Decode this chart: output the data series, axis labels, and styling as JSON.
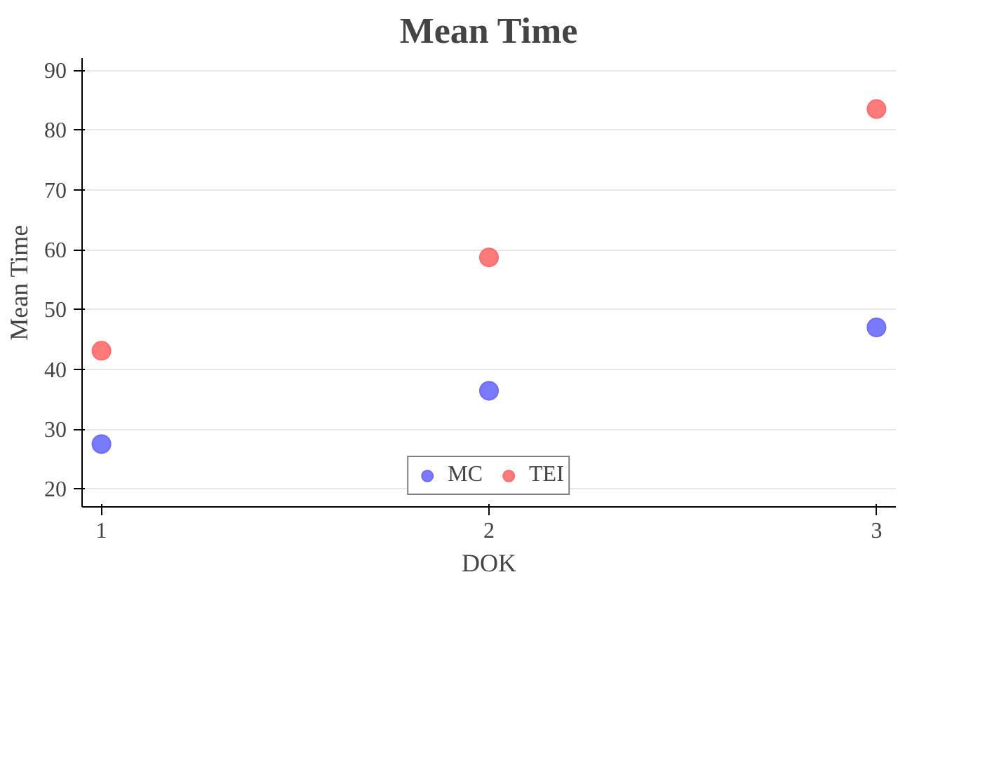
{
  "chart_data": {
    "type": "scatter",
    "title": "Mean Time",
    "xlabel": "DOK",
    "ylabel": "Mean Time",
    "x": [
      1,
      2,
      3
    ],
    "series": [
      {
        "name": "MC",
        "color": "#6b6bff",
        "values": [
          27.5,
          36.4,
          47.0
        ]
      },
      {
        "name": "TEI",
        "color": "#ff6b6b",
        "values": [
          43.1,
          58.7,
          83.5
        ]
      }
    ],
    "xlim": [
      0.95,
      3.05
    ],
    "xticks": [
      1,
      2,
      3
    ],
    "ylim": [
      17,
      92
    ],
    "yticks": [
      20,
      30,
      40,
      50,
      60,
      70,
      80,
      90
    ],
    "grid": "y",
    "legend": "bottom",
    "marker": "circle"
  }
}
